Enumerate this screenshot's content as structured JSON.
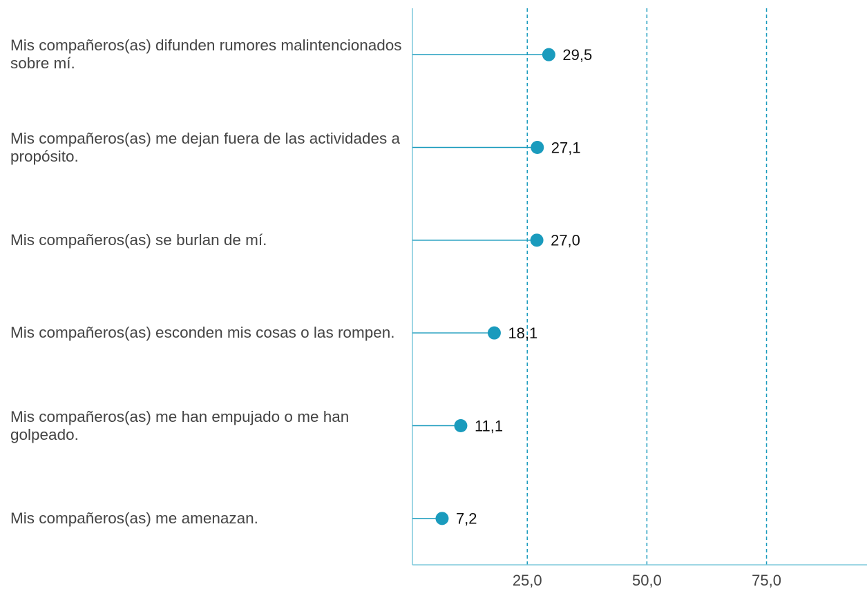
{
  "chart_data": {
    "type": "lollipop",
    "categories": [
      "Mis compañeros(as) difunden rumores malintencionados sobre mí.",
      "Mis compañeros(as) me dejan fuera de las actividades a propósito.",
      "Mis compañeros(as) se burlan de mí.",
      "Mis compañeros(as) esconden mis cosas o las rompen.",
      "Mis compañeros(as) me han empujado o me han golpeado.",
      "Mis compañeros(as) me amenazan."
    ],
    "values": [
      29.5,
      27.1,
      27.0,
      18.1,
      11.1,
      7.2
    ],
    "value_labels": [
      "29,5",
      "27,1",
      "27,0",
      "18,1",
      "11,1",
      "7,2"
    ],
    "color": "#1a9bbd",
    "xlim": [
      1,
      96
    ],
    "xticks": [
      {
        "value": 25,
        "label": "25,0"
      },
      {
        "value": 50,
        "label": "50,0"
      },
      {
        "value": 75,
        "label": "75,0"
      }
    ],
    "grid": true
  }
}
